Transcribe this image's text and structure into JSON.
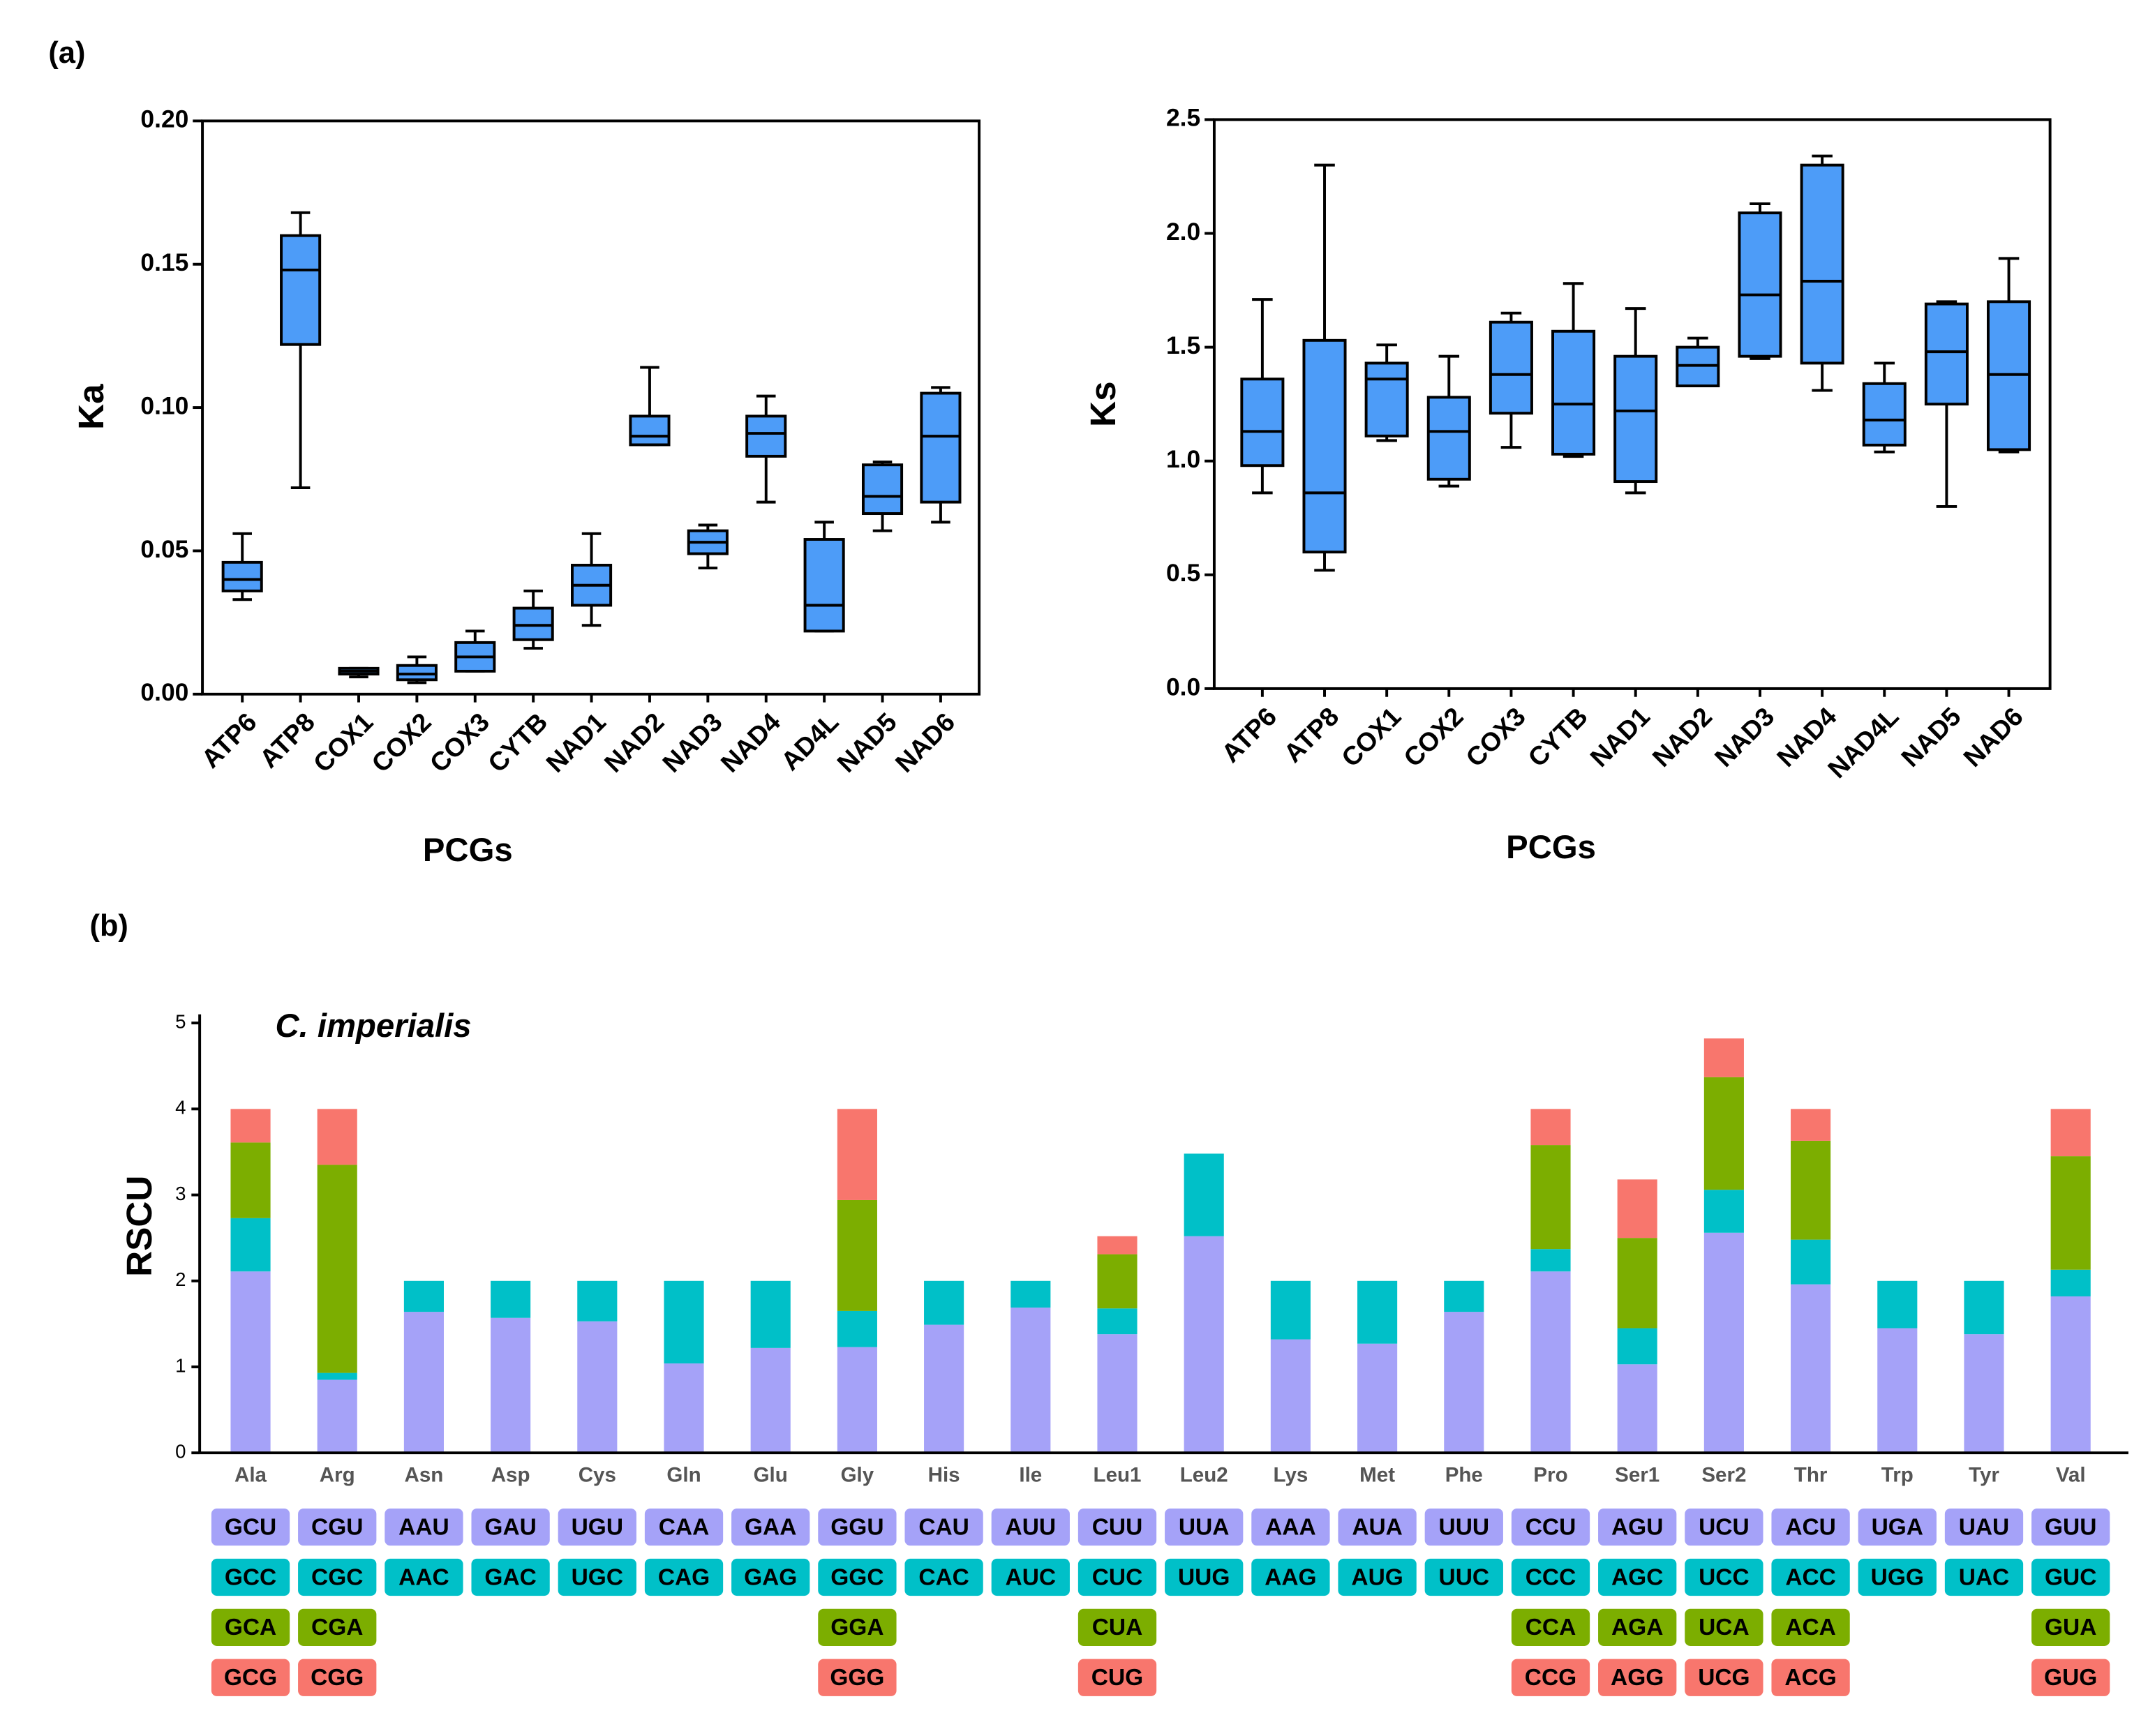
{
  "panel_labels": [
    "(a)",
    "(b)"
  ],
  "chart_data": [
    {
      "type": "box",
      "ylabel": "Ka",
      "xlabel": "PCGs",
      "color": "#4d9cf8",
      "categories": [
        "ATP6",
        "ATP8",
        "COX1",
        "COX2",
        "COX3",
        "CYTB",
        "NAD1",
        "NAD2",
        "NAD3",
        "NAD4",
        "AD4L",
        "NAD5",
        "NAD6"
      ],
      "boxes": [
        {
          "min": 0.033,
          "q1": 0.036,
          "median": 0.04,
          "q3": 0.046,
          "max": 0.056
        },
        {
          "min": 0.072,
          "q1": 0.122,
          "median": 0.148,
          "q3": 0.16,
          "max": 0.168
        },
        {
          "min": 0.006,
          "q1": 0.007,
          "median": 0.008,
          "q3": 0.009,
          "max": 0.009
        },
        {
          "min": 0.004,
          "q1": 0.005,
          "median": 0.007,
          "q3": 0.01,
          "max": 0.013
        },
        {
          "min": 0.008,
          "q1": 0.008,
          "median": 0.013,
          "q3": 0.018,
          "max": 0.022
        },
        {
          "min": 0.016,
          "q1": 0.019,
          "median": 0.024,
          "q3": 0.03,
          "max": 0.036
        },
        {
          "min": 0.024,
          "q1": 0.031,
          "median": 0.038,
          "q3": 0.045,
          "max": 0.056
        },
        {
          "min": 0.087,
          "q1": 0.087,
          "median": 0.09,
          "q3": 0.097,
          "max": 0.114
        },
        {
          "min": 0.044,
          "q1": 0.049,
          "median": 0.053,
          "q3": 0.057,
          "max": 0.059
        },
        {
          "min": 0.067,
          "q1": 0.083,
          "median": 0.091,
          "q3": 0.097,
          "max": 0.104
        },
        {
          "min": 0.022,
          "q1": 0.022,
          "median": 0.031,
          "q3": 0.054,
          "max": 0.06
        },
        {
          "min": 0.057,
          "q1": 0.063,
          "median": 0.069,
          "q3": 0.08,
          "max": 0.081
        },
        {
          "min": 0.06,
          "q1": 0.067,
          "median": 0.09,
          "q3": 0.105,
          "max": 0.107
        }
      ],
      "ylim": [
        0,
        0.2
      ],
      "yticks": [
        {
          "value": 0,
          "label": "0.00"
        },
        0.05,
        {
          "value": 0.1,
          "label": "0.10"
        },
        0.15,
        {
          "value": 0.2,
          "label": "0.20"
        }
      ]
    },
    {
      "type": "box",
      "ylabel": "Ks",
      "xlabel": "PCGs",
      "color": "#4d9cf8",
      "categories": [
        "ATP6",
        "ATP8",
        "COX1",
        "COX2",
        "COX3",
        "CYTB",
        "NAD1",
        "NAD2",
        "NAD3",
        "NAD4",
        "NAD4L",
        "NAD5",
        "NAD6"
      ],
      "boxes": [
        {
          "min": 0.86,
          "q1": 0.98,
          "median": 1.13,
          "q3": 1.36,
          "max": 1.71
        },
        {
          "min": 0.52,
          "q1": 0.6,
          "median": 0.86,
          "q3": 1.53,
          "max": 2.3
        },
        {
          "min": 1.09,
          "q1": 1.11,
          "median": 1.36,
          "q3": 1.43,
          "max": 1.51
        },
        {
          "min": 0.89,
          "q1": 0.92,
          "median": 1.13,
          "q3": 1.28,
          "max": 1.46
        },
        {
          "min": 1.06,
          "q1": 1.21,
          "median": 1.38,
          "q3": 1.61,
          "max": 1.65
        },
        {
          "min": 1.02,
          "q1": 1.03,
          "median": 1.25,
          "q3": 1.57,
          "max": 1.78
        },
        {
          "min": 0.86,
          "q1": 0.91,
          "median": 1.22,
          "q3": 1.46,
          "max": 1.67
        },
        {
          "min": 1.33,
          "q1": 1.33,
          "median": 1.42,
          "q3": 1.5,
          "max": 1.54
        },
        {
          "min": 1.45,
          "q1": 1.46,
          "median": 1.73,
          "q3": 2.09,
          "max": 2.13
        },
        {
          "min": 1.31,
          "q1": 1.43,
          "median": 1.79,
          "q3": 2.3,
          "max": 2.34
        },
        {
          "min": 1.04,
          "q1": 1.07,
          "median": 1.18,
          "q3": 1.34,
          "max": 1.43
        },
        {
          "min": 0.8,
          "q1": 1.25,
          "median": 1.48,
          "q3": 1.69,
          "max": 1.7
        },
        {
          "min": 1.04,
          "q1": 1.05,
          "median": 1.38,
          "q3": 1.7,
          "max": 1.89
        }
      ],
      "ylim": [
        0,
        2.5
      ],
      "yticks": [
        {
          "value": 0,
          "label": "0.0"
        },
        0.5,
        {
          "value": 1,
          "label": "1.0"
        },
        1.5,
        {
          "value": 2,
          "label": "2.0"
        },
        2.5
      ]
    },
    {
      "type": "stacked_bar",
      "ylabel": "RSCU",
      "annotation": "C. imperialis",
      "categories": [
        "Ala",
        "Arg",
        "Asn",
        "Asp",
        "Cys",
        "Gln",
        "Glu",
        "Gly",
        "His",
        "Ile",
        "Leu1",
        "Leu2",
        "Lys",
        "Met",
        "Phe",
        "Pro",
        "Ser1",
        "Ser2",
        "Thr",
        "Trp",
        "Tyr",
        "Val"
      ],
      "series": [
        {
          "color": "#a5a2f8",
          "values": [
            2.11,
            0.85,
            1.64,
            1.57,
            1.53,
            1.04,
            1.22,
            1.23,
            1.49,
            1.69,
            1.38,
            2.52,
            1.32,
            1.27,
            1.64,
            2.11,
            1.03,
            2.56,
            1.96,
            1.45,
            1.38,
            1.82
          ]
        },
        {
          "color": "#00c0c8",
          "values": [
            0.62,
            0.08,
            0.36,
            0.43,
            0.47,
            0.96,
            0.78,
            0.42,
            0.51,
            0.31,
            0.3,
            0.96,
            0.68,
            0.73,
            0.36,
            0.26,
            0.42,
            0.5,
            0.52,
            0.55,
            0.62,
            0.31
          ]
        },
        {
          "color": "#7cae00",
          "values": [
            0.88,
            2.42,
            null,
            null,
            null,
            null,
            null,
            1.29,
            null,
            null,
            0.63,
            null,
            null,
            null,
            null,
            1.21,
            1.05,
            1.31,
            1.15,
            null,
            null,
            1.32
          ]
        },
        {
          "color": "#f8766d",
          "values": [
            0.39,
            0.65,
            null,
            null,
            null,
            null,
            null,
            1.06,
            null,
            null,
            0.21,
            null,
            null,
            null,
            null,
            0.42,
            0.68,
            0.45,
            0.37,
            null,
            null,
            0.55
          ]
        }
      ],
      "codons": [
        [
          "GCU",
          "GCC",
          "GCA",
          "GCG"
        ],
        [
          "CGU",
          "CGC",
          "CGA",
          "CGG"
        ],
        [
          "AAU",
          "AAC"
        ],
        [
          "GAU",
          "GAC"
        ],
        [
          "UGU",
          "UGC"
        ],
        [
          "CAA",
          "CAG"
        ],
        [
          "GAA",
          "GAG"
        ],
        [
          "GGU",
          "GGC",
          "GGA",
          "GGG"
        ],
        [
          "CAU",
          "CAC"
        ],
        [
          "AUU",
          "AUC"
        ],
        [
          "CUU",
          "CUC",
          "CUA",
          "CUG"
        ],
        [
          "UUA",
          "UUG"
        ],
        [
          "AAA",
          "AAG"
        ],
        [
          "AUA",
          "AUG"
        ],
        [
          "UUU",
          "UUC"
        ],
        [
          "CCU",
          "CCC",
          "CCA",
          "CCG"
        ],
        [
          "AGU",
          "AGC",
          "AGA",
          "AGG"
        ],
        [
          "UCU",
          "UCC",
          "UCA",
          "UCG"
        ],
        [
          "ACU",
          "ACC",
          "ACA",
          "ACG"
        ],
        [
          "UGA",
          "UGG"
        ],
        [
          "UAU",
          "UAC"
        ],
        [
          "GUU",
          "GUC",
          "GUA",
          "GUG"
        ]
      ],
      "ylim": [
        0,
        5.1
      ],
      "yticks": [
        0,
        1,
        2,
        3,
        4,
        5
      ]
    }
  ]
}
